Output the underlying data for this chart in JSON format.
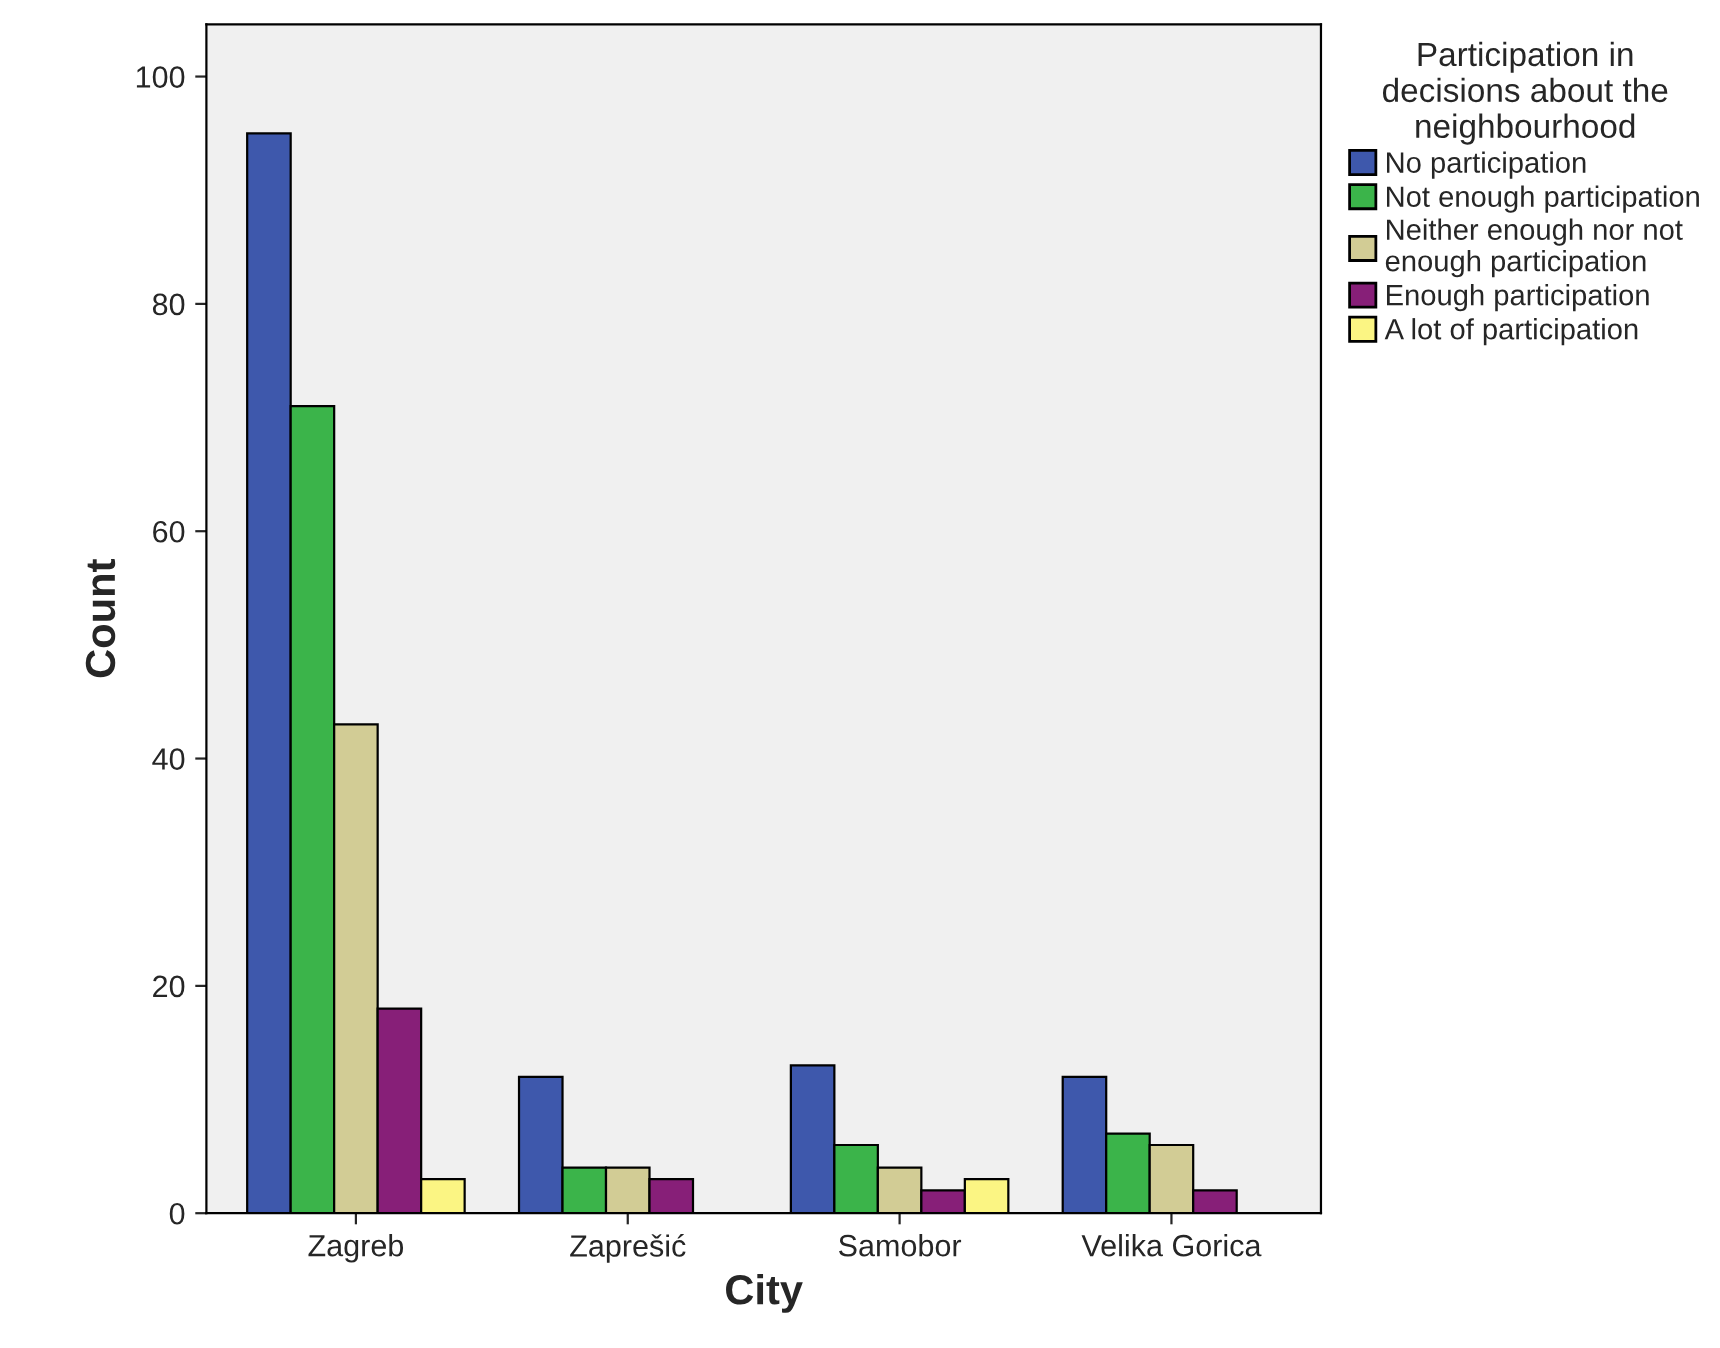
{
  "chart_data": {
    "type": "bar",
    "xlabel": "City",
    "ylabel": "Count",
    "legend_title": "Participation in\ndecisions about the\nneighbourhood",
    "categories": [
      "Zagreb",
      "Zaprešić",
      "Samobor",
      "Velika Gorica"
    ],
    "series": [
      {
        "name": "No participation",
        "color": "#3e58ac",
        "values": [
          95,
          12,
          13,
          12
        ]
      },
      {
        "name": "Not enough participation",
        "color": "#3bb44a",
        "values": [
          71,
          4,
          6,
          7
        ]
      },
      {
        "name": "Neither enough nor not\nenough participation",
        "color": "#d2cc95",
        "values": [
          43,
          4,
          4,
          6
        ]
      },
      {
        "name": "Enough participation",
        "color": "#871f78",
        "values": [
          18,
          3,
          2,
          2
        ]
      },
      {
        "name": "A lot of participation",
        "color": "#fbf583",
        "values": [
          3,
          null,
          3,
          null
        ]
      }
    ],
    "ylim": [
      0,
      104.6
    ],
    "yticks": [
      0,
      20,
      40,
      60,
      80,
      100
    ],
    "grid": false,
    "legend": "right"
  }
}
